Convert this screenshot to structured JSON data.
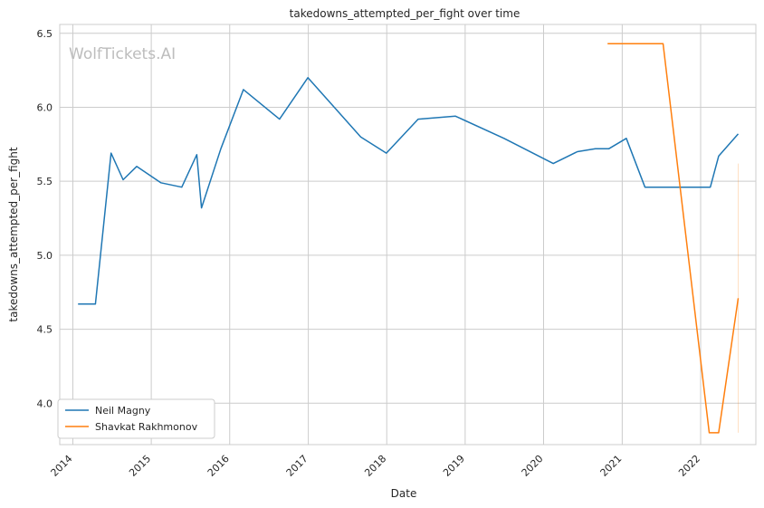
{
  "chart_data": {
    "type": "line",
    "title": "takedowns_attempted_per_fight over time",
    "xlabel": "Date",
    "ylabel": "takedowns_attempted_per_fight",
    "watermark": "WolfTickets.AI",
    "xlim": [
      "2013-11-01",
      "2022-09-15"
    ],
    "ylim": [
      3.72,
      6.56
    ],
    "x_ticks": [
      "2014",
      "2015",
      "2016",
      "2017",
      "2018",
      "2019",
      "2020",
      "2021",
      "2022"
    ],
    "y_ticks": [
      "4.0",
      "4.5",
      "5.0",
      "5.5",
      "6.0",
      "6.5"
    ],
    "grid": true,
    "legend_position": "lower-left",
    "series": [
      {
        "name": "Neil Magny",
        "color": "#1f77b4",
        "points": [
          [
            "2014-01-25",
            4.67
          ],
          [
            "2014-04-16",
            4.67
          ],
          [
            "2014-06-28",
            5.69
          ],
          [
            "2014-08-23",
            5.51
          ],
          [
            "2014-10-25",
            5.6
          ],
          [
            "2015-02-14",
            5.49
          ],
          [
            "2015-05-23",
            5.46
          ],
          [
            "2015-08-01",
            5.68
          ],
          [
            "2015-08-23",
            5.32
          ],
          [
            "2015-11-21",
            5.72
          ],
          [
            "2016-03-05",
            6.12
          ],
          [
            "2016-08-20",
            5.92
          ],
          [
            "2016-12-30",
            6.2
          ],
          [
            "2017-09-02",
            5.8
          ],
          [
            "2017-12-30",
            5.69
          ],
          [
            "2018-05-27",
            5.92
          ],
          [
            "2018-11-17",
            5.94
          ],
          [
            "2019-07-01",
            5.79
          ],
          [
            "2020-02-15",
            5.62
          ],
          [
            "2020-06-06",
            5.7
          ],
          [
            "2020-08-29",
            5.72
          ],
          [
            "2020-10-31",
            5.72
          ],
          [
            "2021-01-20",
            5.79
          ],
          [
            "2021-04-17",
            5.46
          ],
          [
            "2022-02-15",
            5.46
          ],
          [
            "2022-03-26",
            5.67
          ],
          [
            "2022-06-25",
            5.82
          ]
        ]
      },
      {
        "name": "Shavkat Rakhmonov",
        "color": "#ff7f0e",
        "points": [
          [
            "2020-10-25",
            6.43
          ],
          [
            "2021-07-10",
            6.43
          ],
          [
            "2022-02-10",
            3.8
          ],
          [
            "2022-03-26",
            3.8
          ],
          [
            "2022-06-25",
            4.71
          ]
        ],
        "band": {
          "x": "2022-06-25",
          "low": 3.8,
          "high": 5.62
        }
      }
    ]
  }
}
